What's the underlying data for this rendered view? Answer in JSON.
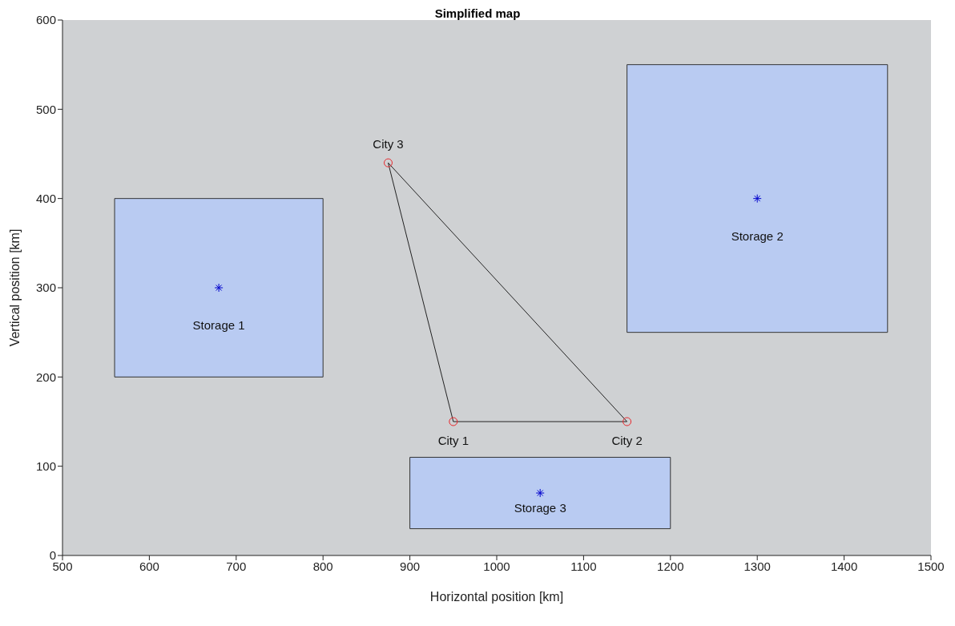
{
  "chart_data": {
    "type": "scatter",
    "title": "Simplified map",
    "xlabel": "Horizontal position [km]",
    "ylabel": "Vertical position [km]",
    "xlim": [
      500,
      1500
    ],
    "xticks": [
      500,
      600,
      700,
      800,
      900,
      1000,
      1100,
      1200,
      1300,
      1400,
      1500
    ],
    "ylim": [
      0,
      600
    ],
    "yticks": [
      0,
      100,
      200,
      300,
      400,
      500,
      600
    ],
    "grid": false,
    "legend": false,
    "series": [
      {
        "type": "area",
        "color": "#b9cbf2",
        "x": [
          560,
          800,
          800,
          560,
          560
        ],
        "values": [
          200,
          200,
          400,
          400,
          200
        ]
      },
      {
        "type": "area",
        "color": "#b9cbf2",
        "x": [
          1150,
          1450,
          1450,
          1150,
          1150
        ],
        "values": [
          250,
          250,
          550,
          550,
          250
        ]
      },
      {
        "type": "area",
        "color": "#b9cbf2",
        "x": [
          900,
          1200,
          1200,
          900,
          900
        ],
        "values": [
          30,
          30,
          110,
          110,
          30
        ]
      },
      {
        "type": "line",
        "color": "#222222",
        "marker": "none",
        "x": [
          950,
          1150
        ],
        "values": [
          150,
          150
        ]
      },
      {
        "type": "line",
        "color": "#222222",
        "marker": "none",
        "x": [
          875,
          1150
        ],
        "values": [
          440,
          150
        ]
      },
      {
        "type": "line",
        "color": "#222222",
        "marker": "none",
        "x": [
          875,
          950
        ],
        "values": [
          440,
          150
        ]
      },
      {
        "color": "#e8262b",
        "marker": "circle",
        "x": [
          950,
          1150,
          875
        ],
        "values": [
          150,
          150,
          440
        ],
        "value_labels": [
          "City 1",
          "City 2",
          "City 3"
        ]
      },
      {
        "color": "#0000cc",
        "marker": "cross",
        "x": [
          680,
          1300,
          1050
        ],
        "values": [
          300,
          400,
          70
        ],
        "value_labels": [
          "Storage 1",
          "Storage 2",
          "Storage 3"
        ]
      }
    ]
  }
}
